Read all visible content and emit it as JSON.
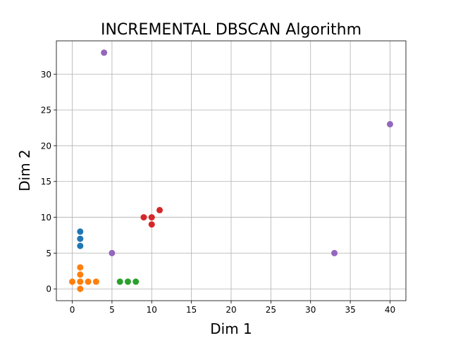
{
  "chart_data": {
    "type": "scatter",
    "title": "INCREMENTAL DBSCAN Algorithm",
    "xlabel": "Dim 1",
    "ylabel": "Dim 2",
    "xlim": [
      -2,
      42
    ],
    "ylim": [
      -1.65,
      34.65
    ],
    "xticks": [
      0,
      5,
      10,
      15,
      20,
      25,
      30,
      35,
      40
    ],
    "yticks": [
      0,
      5,
      10,
      15,
      20,
      25,
      30
    ],
    "grid": true,
    "series": [
      {
        "color": "#1f77b4",
        "points": [
          [
            1,
            6
          ],
          [
            1,
            7
          ],
          [
            1,
            8
          ]
        ]
      },
      {
        "color": "#ff7f0e",
        "points": [
          [
            0,
            1
          ],
          [
            1,
            0
          ],
          [
            1,
            1
          ],
          [
            1,
            2
          ],
          [
            1,
            3
          ],
          [
            2,
            1
          ],
          [
            3,
            1
          ]
        ]
      },
      {
        "color": "#2ca02c",
        "points": [
          [
            6,
            1
          ],
          [
            7,
            1
          ],
          [
            8,
            1
          ]
        ]
      },
      {
        "color": "#d62728",
        "points": [
          [
            9,
            10
          ],
          [
            10,
            10
          ],
          [
            10,
            9
          ],
          [
            11,
            11
          ]
        ]
      },
      {
        "color": "#9467bd",
        "points": [
          [
            4,
            33
          ],
          [
            5,
            5
          ],
          [
            33,
            5
          ],
          [
            40,
            23
          ]
        ]
      }
    ]
  }
}
